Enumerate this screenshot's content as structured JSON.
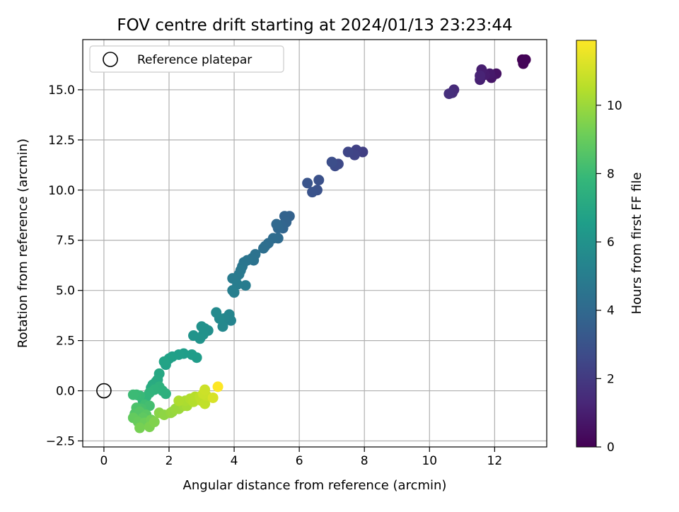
{
  "chart_data": {
    "type": "scatter",
    "title": "FOV centre drift starting at 2024/01/13 23:23:44",
    "xlabel": "Angular distance from reference (arcmin)",
    "ylabel": "Rotation from reference (arcmin)",
    "xlim": [
      -0.65,
      13.6
    ],
    "ylim": [
      -2.8,
      17.5
    ],
    "xticks": [
      0,
      2,
      4,
      6,
      8,
      10,
      12
    ],
    "xtick_labels": [
      "0",
      "2",
      "4",
      "6",
      "8",
      "10",
      "12"
    ],
    "yticks": [
      -2.5,
      0,
      2.5,
      5,
      7.5,
      10,
      12.5,
      15
    ],
    "ytick_labels": [
      "−2.5",
      "0.0",
      "2.5",
      "5.0",
      "7.5",
      "10.0",
      "12.5",
      "15.0"
    ],
    "grid": true,
    "legend": {
      "placement": "top-left",
      "entries": [
        {
          "label": "Reference platepar",
          "marker": "open-circle"
        }
      ]
    },
    "reference_point": {
      "x": 0,
      "y": 0
    },
    "colorbar": {
      "label": "Hours from first FF file",
      "colormap": "viridis",
      "range": [
        0,
        11.9
      ],
      "ticks": [
        0,
        2,
        4,
        6,
        8,
        10
      ],
      "tick_labels": [
        "0",
        "2",
        "4",
        "6",
        "8",
        "10"
      ],
      "colors": [
        "#440154",
        "#482878",
        "#3e4a89",
        "#31688e",
        "#26828e",
        "#1f9e89",
        "#35b779",
        "#6ece58",
        "#b5de2b",
        "#fde725"
      ]
    },
    "points": [
      {
        "x": 12.85,
        "y": 16.5,
        "c": 0.0
      },
      {
        "x": 12.95,
        "y": 16.5,
        "c": 0.05
      },
      {
        "x": 12.88,
        "y": 16.3,
        "c": 0.1
      },
      {
        "x": 12.92,
        "y": 16.45,
        "c": 0.15
      },
      {
        "x": 12.05,
        "y": 15.8,
        "c": 0.6
      },
      {
        "x": 11.9,
        "y": 15.6,
        "c": 0.7
      },
      {
        "x": 11.85,
        "y": 15.8,
        "c": 0.8
      },
      {
        "x": 11.7,
        "y": 15.75,
        "c": 0.9
      },
      {
        "x": 11.6,
        "y": 16.0,
        "c": 1.0
      },
      {
        "x": 11.55,
        "y": 15.5,
        "c": 1.1
      },
      {
        "x": 11.55,
        "y": 15.7,
        "c": 1.2
      },
      {
        "x": 10.75,
        "y": 15.0,
        "c": 1.4
      },
      {
        "x": 10.7,
        "y": 14.85,
        "c": 1.5
      },
      {
        "x": 10.6,
        "y": 14.8,
        "c": 1.6
      },
      {
        "x": 7.95,
        "y": 11.9,
        "c": 2.2
      },
      {
        "x": 7.75,
        "y": 12.0,
        "c": 2.3
      },
      {
        "x": 7.7,
        "y": 11.75,
        "c": 2.4
      },
      {
        "x": 7.5,
        "y": 11.9,
        "c": 2.5
      },
      {
        "x": 7.2,
        "y": 11.3,
        "c": 2.6
      },
      {
        "x": 7.1,
        "y": 11.2,
        "c": 2.7
      },
      {
        "x": 7.0,
        "y": 11.4,
        "c": 2.8
      },
      {
        "x": 6.6,
        "y": 10.5,
        "c": 2.95
      },
      {
        "x": 6.55,
        "y": 10.0,
        "c": 3.0
      },
      {
        "x": 6.4,
        "y": 9.9,
        "c": 3.05
      },
      {
        "x": 6.25,
        "y": 10.35,
        "c": 3.1
      },
      {
        "x": 5.7,
        "y": 8.7,
        "c": 3.7
      },
      {
        "x": 5.55,
        "y": 8.7,
        "c": 3.75
      },
      {
        "x": 5.6,
        "y": 8.4,
        "c": 3.8
      },
      {
        "x": 5.5,
        "y": 8.1,
        "c": 3.85
      },
      {
        "x": 5.45,
        "y": 8.25,
        "c": 3.9
      },
      {
        "x": 5.35,
        "y": 8.1,
        "c": 3.95
      },
      {
        "x": 5.3,
        "y": 8.3,
        "c": 4.0
      },
      {
        "x": 5.35,
        "y": 7.6,
        "c": 4.1
      },
      {
        "x": 5.2,
        "y": 7.6,
        "c": 4.15
      },
      {
        "x": 5.05,
        "y": 7.35,
        "c": 4.2
      },
      {
        "x": 4.95,
        "y": 7.2,
        "c": 4.25
      },
      {
        "x": 4.9,
        "y": 7.1,
        "c": 4.3
      },
      {
        "x": 4.65,
        "y": 6.8,
        "c": 4.45
      },
      {
        "x": 4.6,
        "y": 6.5,
        "c": 4.5
      },
      {
        "x": 4.55,
        "y": 6.6,
        "c": 4.55
      },
      {
        "x": 4.4,
        "y": 6.5,
        "c": 4.6
      },
      {
        "x": 4.3,
        "y": 6.4,
        "c": 4.65
      },
      {
        "x": 4.25,
        "y": 6.2,
        "c": 4.7
      },
      {
        "x": 4.2,
        "y": 6.0,
        "c": 4.8
      },
      {
        "x": 4.15,
        "y": 5.8,
        "c": 4.85
      },
      {
        "x": 4.05,
        "y": 5.6,
        "c": 4.9
      },
      {
        "x": 3.95,
        "y": 5.6,
        "c": 4.95
      },
      {
        "x": 4.35,
        "y": 5.25,
        "c": 5.0
      },
      {
        "x": 4.1,
        "y": 5.3,
        "c": 5.05
      },
      {
        "x": 3.95,
        "y": 5.0,
        "c": 5.1
      },
      {
        "x": 4.0,
        "y": 4.9,
        "c": 5.15
      },
      {
        "x": 3.9,
        "y": 3.5,
        "c": 5.4
      },
      {
        "x": 3.85,
        "y": 3.8,
        "c": 5.45
      },
      {
        "x": 3.7,
        "y": 3.6,
        "c": 5.5
      },
      {
        "x": 3.65,
        "y": 3.2,
        "c": 5.55
      },
      {
        "x": 3.55,
        "y": 3.6,
        "c": 5.6
      },
      {
        "x": 3.45,
        "y": 3.9,
        "c": 5.65
      },
      {
        "x": 3.2,
        "y": 3.0,
        "c": 5.9
      },
      {
        "x": 3.1,
        "y": 3.1,
        "c": 5.95
      },
      {
        "x": 3.0,
        "y": 3.2,
        "c": 6.0
      },
      {
        "x": 3.05,
        "y": 2.8,
        "c": 6.05
      },
      {
        "x": 2.95,
        "y": 2.6,
        "c": 6.1
      },
      {
        "x": 2.75,
        "y": 2.75,
        "c": 6.15
      },
      {
        "x": 2.85,
        "y": 1.65,
        "c": 6.5
      },
      {
        "x": 2.7,
        "y": 1.8,
        "c": 6.55
      },
      {
        "x": 2.45,
        "y": 1.85,
        "c": 6.6
      },
      {
        "x": 2.3,
        "y": 1.8,
        "c": 6.65
      },
      {
        "x": 2.1,
        "y": 1.7,
        "c": 6.7
      },
      {
        "x": 2.0,
        "y": 1.6,
        "c": 6.75
      },
      {
        "x": 1.9,
        "y": 1.3,
        "c": 6.8
      },
      {
        "x": 1.85,
        "y": 1.45,
        "c": 6.85
      },
      {
        "x": 1.7,
        "y": 0.85,
        "c": 7.1
      },
      {
        "x": 1.65,
        "y": 0.55,
        "c": 7.15
      },
      {
        "x": 1.6,
        "y": 0.45,
        "c": 7.2
      },
      {
        "x": 1.5,
        "y": 0.3,
        "c": 7.25
      },
      {
        "x": 1.45,
        "y": 0.15,
        "c": 7.3
      },
      {
        "x": 1.9,
        "y": -0.15,
        "c": 7.5
      },
      {
        "x": 1.8,
        "y": 0.0,
        "c": 7.55
      },
      {
        "x": 1.7,
        "y": 0.2,
        "c": 7.6
      },
      {
        "x": 1.55,
        "y": 0.05,
        "c": 7.65
      },
      {
        "x": 1.4,
        "y": -0.1,
        "c": 7.7
      },
      {
        "x": 1.3,
        "y": -0.3,
        "c": 7.75
      },
      {
        "x": 1.2,
        "y": -0.5,
        "c": 7.8
      },
      {
        "x": 1.1,
        "y": -0.25,
        "c": 8.0
      },
      {
        "x": 1.0,
        "y": -0.2,
        "c": 8.05
      },
      {
        "x": 0.9,
        "y": -0.2,
        "c": 8.1
      },
      {
        "x": 1.25,
        "y": -0.7,
        "c": 8.2
      },
      {
        "x": 1.4,
        "y": -0.75,
        "c": 8.3
      },
      {
        "x": 1.15,
        "y": -0.9,
        "c": 8.4
      },
      {
        "x": 1.0,
        "y": -0.85,
        "c": 8.5
      },
      {
        "x": 0.95,
        "y": -1.15,
        "c": 8.6
      },
      {
        "x": 1.1,
        "y": -1.05,
        "c": 8.7
      },
      {
        "x": 1.3,
        "y": -1.2,
        "c": 8.8
      },
      {
        "x": 1.2,
        "y": -1.35,
        "c": 8.9
      },
      {
        "x": 0.9,
        "y": -1.35,
        "c": 9.0
      },
      {
        "x": 1.05,
        "y": -1.55,
        "c": 9.1
      },
      {
        "x": 1.25,
        "y": -1.6,
        "c": 9.2
      },
      {
        "x": 1.45,
        "y": -1.45,
        "c": 9.3
      },
      {
        "x": 1.1,
        "y": -1.85,
        "c": 9.4
      },
      {
        "x": 1.4,
        "y": -1.8,
        "c": 9.5
      },
      {
        "x": 1.55,
        "y": -1.55,
        "c": 9.6
      },
      {
        "x": 1.7,
        "y": -1.1,
        "c": 9.75
      },
      {
        "x": 1.85,
        "y": -1.2,
        "c": 9.85
      },
      {
        "x": 2.05,
        "y": -1.1,
        "c": 9.95
      },
      {
        "x": 2.1,
        "y": -1.05,
        "c": 10.0
      },
      {
        "x": 2.2,
        "y": -0.9,
        "c": 10.05
      },
      {
        "x": 2.3,
        "y": -0.9,
        "c": 10.1
      },
      {
        "x": 2.45,
        "y": -0.75,
        "c": 10.2
      },
      {
        "x": 2.55,
        "y": -0.75,
        "c": 10.3
      },
      {
        "x": 2.5,
        "y": -0.5,
        "c": 10.4
      },
      {
        "x": 2.3,
        "y": -0.5,
        "c": 10.45
      },
      {
        "x": 2.65,
        "y": -0.4,
        "c": 10.5
      },
      {
        "x": 2.75,
        "y": -0.55,
        "c": 10.55
      },
      {
        "x": 2.8,
        "y": -0.3,
        "c": 10.6
      },
      {
        "x": 2.95,
        "y": -0.3,
        "c": 10.7
      },
      {
        "x": 3.0,
        "y": -0.5,
        "c": 10.75
      },
      {
        "x": 3.1,
        "y": -0.65,
        "c": 10.8
      },
      {
        "x": 3.15,
        "y": -0.25,
        "c": 10.9
      },
      {
        "x": 3.05,
        "y": -0.15,
        "c": 10.95
      },
      {
        "x": 3.1,
        "y": 0.05,
        "c": 11.0
      },
      {
        "x": 3.35,
        "y": -0.35,
        "c": 11.2
      },
      {
        "x": 3.5,
        "y": 0.2,
        "c": 11.9
      }
    ]
  }
}
